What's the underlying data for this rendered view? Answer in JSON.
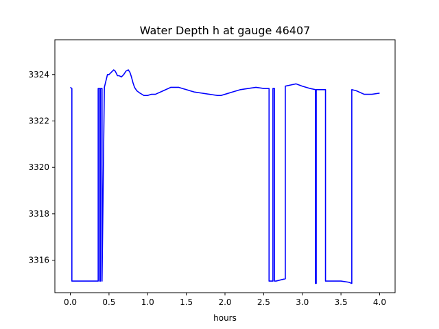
{
  "chart_data": {
    "type": "line",
    "title": "Water Depth h at gauge 46407",
    "xlabel": "hours",
    "ylabel": "",
    "xlim": [
      -0.2,
      4.2
    ],
    "ylim": [
      3314.6,
      3325.5
    ],
    "xticks": [
      0.0,
      0.5,
      1.0,
      1.5,
      2.0,
      2.5,
      3.0,
      3.5,
      4.0
    ],
    "xtick_labels": [
      "0.0",
      "0.5",
      "1.0",
      "1.5",
      "2.0",
      "2.5",
      "3.0",
      "3.5",
      "4.0"
    ],
    "yticks": [
      3316,
      3318,
      3320,
      3322,
      3324
    ],
    "ytick_labels": [
      "3316",
      "3318",
      "3320",
      "3322",
      "3324"
    ],
    "grid": false,
    "series": [
      {
        "color": "#0000ff",
        "x": [
          0.0,
          0.02,
          0.02,
          0.3,
          0.36,
          0.36,
          0.38,
          0.38,
          0.39,
          0.39,
          0.41,
          0.41,
          0.44,
          0.48,
          0.5,
          0.53,
          0.56,
          0.58,
          0.61,
          0.63,
          0.66,
          0.69,
          0.72,
          0.75,
          0.77,
          0.79,
          0.81,
          0.83,
          0.86,
          0.9,
          0.95,
          1.0,
          1.05,
          1.1,
          1.2,
          1.3,
          1.4,
          1.45,
          1.5,
          1.55,
          1.6,
          1.7,
          1.8,
          1.9,
          1.95,
          2.0,
          2.1,
          2.2,
          2.3,
          2.4,
          2.5,
          2.57,
          2.57,
          2.62,
          2.62,
          2.64,
          2.64,
          2.66,
          2.66,
          2.78,
          2.78,
          2.85,
          2.92,
          3.0,
          3.1,
          3.17,
          3.17,
          3.18,
          3.18,
          3.3,
          3.3,
          3.4,
          3.5,
          3.6,
          3.64,
          3.64,
          3.7,
          3.8,
          3.9,
          4.0
        ],
        "y": [
          3323.45,
          3323.4,
          3315.1,
          3315.1,
          3315.1,
          3323.4,
          3323.4,
          3315.1,
          3315.1,
          3323.4,
          3323.4,
          3315.1,
          3323.45,
          3324.0,
          3324.0,
          3324.1,
          3324.2,
          3324.15,
          3323.95,
          3323.95,
          3323.9,
          3324.0,
          3324.15,
          3324.2,
          3324.1,
          3323.9,
          3323.65,
          3323.45,
          3323.3,
          3323.2,
          3323.1,
          3323.1,
          3323.15,
          3323.15,
          3323.3,
          3323.45,
          3323.45,
          3323.4,
          3323.35,
          3323.3,
          3323.25,
          3323.2,
          3323.15,
          3323.1,
          3323.1,
          3323.15,
          3323.25,
          3323.35,
          3323.4,
          3323.45,
          3323.4,
          3323.4,
          3315.1,
          3315.1,
          3323.4,
          3323.4,
          3315.1,
          3315.1,
          3315.1,
          3315.2,
          3323.5,
          3323.55,
          3323.6,
          3323.5,
          3323.4,
          3323.35,
          3315.0,
          3315.0,
          3323.35,
          3323.35,
          3315.1,
          3315.1,
          3315.1,
          3315.05,
          3315.0,
          3323.35,
          3323.3,
          3323.15,
          3323.15,
          3323.2
        ]
      }
    ]
  }
}
